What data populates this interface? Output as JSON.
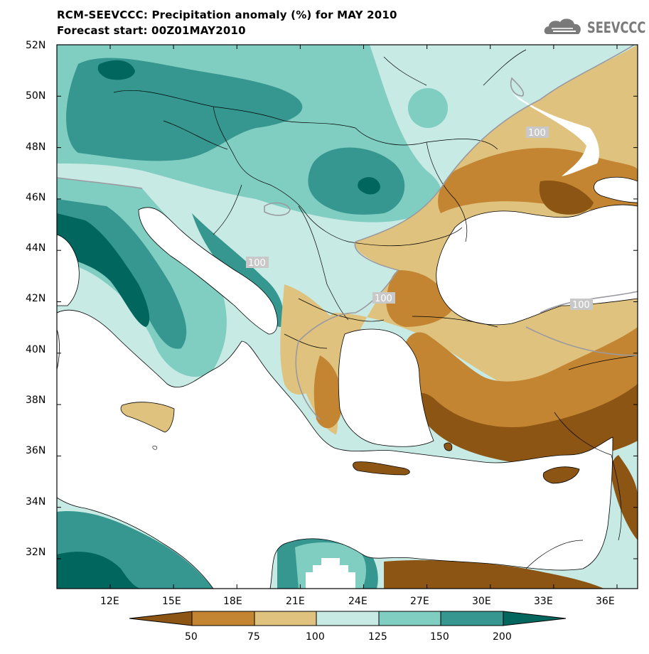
{
  "header": {
    "title_line1": "RCM-SEEVCCC: Precipitation anomaly (%) for MAY 2010",
    "title_line2": "Forecast start: 00Z01MAY2010"
  },
  "logo": {
    "text": "SEEVCCC",
    "icon": "cloud-logo-icon"
  },
  "map": {
    "lat_labels": [
      "52N",
      "50N",
      "48N",
      "46N",
      "44N",
      "42N",
      "40N",
      "38N",
      "36N",
      "34N",
      "32N"
    ],
    "lon_labels": [
      "12E",
      "15E",
      "18E",
      "21E",
      "24E",
      "27E",
      "30E",
      "33E",
      "36E"
    ],
    "contour_labels": [
      "100",
      "100",
      "100",
      "100"
    ],
    "colors": {
      "lt50": "#8c5513",
      "c50_75": "#c38532",
      "c75_100": "#dfc27d",
      "c100_125": "#c7eae5",
      "c125_150": "#80cdc1",
      "c150_200": "#35978f",
      "gt200": "#01665e",
      "sea": "#ffffff"
    }
  },
  "colorbar": {
    "ticks": [
      "50",
      "75",
      "100",
      "125",
      "150",
      "200"
    ]
  }
}
